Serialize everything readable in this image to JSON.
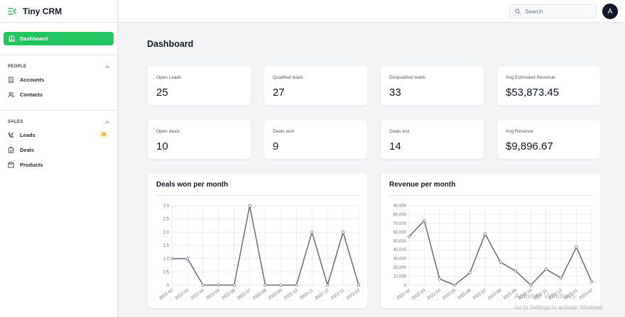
{
  "app": {
    "title": "Tiny CRM"
  },
  "sidebar": {
    "dashboard_label": "Dashboard",
    "groups": [
      {
        "title": "PEOPLE",
        "items": [
          {
            "label": "Accounts"
          },
          {
            "label": "Contacts"
          }
        ]
      },
      {
        "title": "SALES",
        "items": [
          {
            "label": "Leads",
            "badge": "25"
          },
          {
            "label": "Deals"
          },
          {
            "label": "Products"
          }
        ]
      }
    ]
  },
  "topbar": {
    "search_placeholder": "Search",
    "avatar_initial": "A"
  },
  "page": {
    "title": "Dashboard"
  },
  "stats": [
    {
      "label": "Open Leads",
      "value": "25"
    },
    {
      "label": "Qualified leads",
      "value": "27"
    },
    {
      "label": "Disqualified leads",
      "value": "33"
    },
    {
      "label": "Avg Estimated Revenue",
      "value": "$53,873.45"
    },
    {
      "label": "Open deals",
      "value": "10"
    },
    {
      "label": "Deals won",
      "value": "9"
    },
    {
      "label": "Deals lost",
      "value": "14"
    },
    {
      "label": "Avg Revenue",
      "value": "$9,896.67"
    }
  ],
  "colors": {
    "accent": "#22c55e",
    "line": "#6b7280",
    "badge_bg": "#fef3c7",
    "badge_text": "#d97706"
  },
  "watermark": {
    "line1": "Activate Windows",
    "line2": "Go to Settings to activate Windows."
  },
  "chart_data": [
    {
      "type": "line",
      "title": "Deals won per month",
      "x": [
        "2022-02",
        "2022-03",
        "2022-04",
        "2022-05",
        "2022-06",
        "2022-07",
        "2022-08",
        "2022-09",
        "2022-10",
        "2022-11",
        "2022-12",
        "2023-01",
        "2023-02"
      ],
      "series": [
        {
          "values": [
            1,
            1,
            0,
            0,
            0,
            3,
            0,
            0,
            0,
            2,
            0,
            2,
            0
          ]
        }
      ],
      "yticks": [
        "0",
        "0.5",
        "1.0",
        "1.5",
        "2.0",
        "2.5",
        "3.0"
      ],
      "ylim": [
        0,
        3
      ],
      "grid": true
    },
    {
      "type": "line",
      "title": "Revenue per month",
      "x": [
        "2022-02",
        "2022-03",
        "2022-04",
        "2022-05",
        "2022-06",
        "2022-07",
        "2022-08",
        "2022-09",
        "2022-10",
        "2022-11",
        "2022-12",
        "2023-01",
        "2023-02"
      ],
      "series": [
        {
          "values": [
            55000,
            73000,
            7000,
            0,
            14000,
            58000,
            26000,
            16000,
            0,
            18000,
            8000,
            43000,
            4000
          ]
        }
      ],
      "yticks": [
        "0",
        "10,000",
        "20,000",
        "30,000",
        "40,000",
        "50,000",
        "60,000",
        "70,000",
        "80,000",
        "90,000"
      ],
      "ylim": [
        0,
        90000
      ],
      "grid": true
    }
  ]
}
